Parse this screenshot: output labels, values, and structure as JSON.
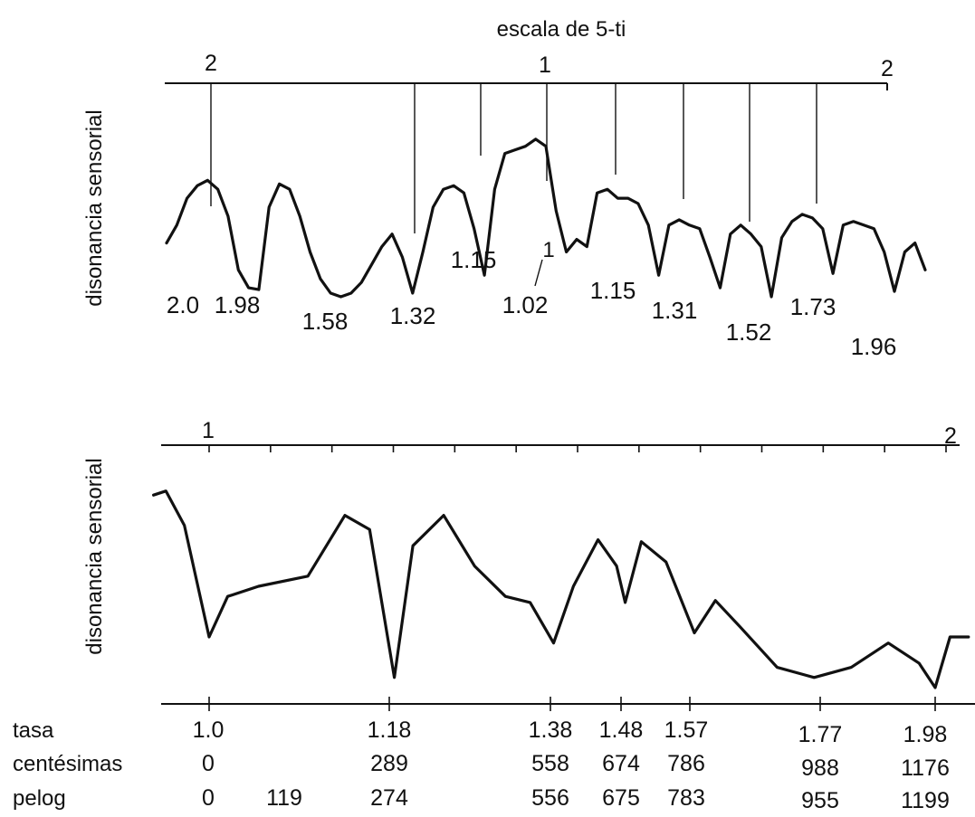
{
  "chart_data": [
    {
      "type": "line",
      "title": "escala de 5-ti",
      "ylabel": "disonancia sensorial",
      "top_axis_labels": [
        "2",
        "1",
        "2"
      ],
      "minima_labels": [
        {
          "text": "2.0"
        },
        {
          "text": "1.98"
        },
        {
          "text": "1.58"
        },
        {
          "text": "1.32"
        },
        {
          "text": "1.15"
        },
        {
          "text": "1"
        },
        {
          "text": "1.02"
        },
        {
          "text": "1.15"
        },
        {
          "text": "1.31"
        },
        {
          "text": "1.52"
        },
        {
          "text": "1.73"
        },
        {
          "text": "1.96"
        }
      ],
      "series": [
        {
          "values": [
            0.3,
            0.4,
            0.55,
            0.62,
            0.65,
            0.6,
            0.45,
            0.15,
            0.05,
            0.04,
            0.5,
            0.63,
            0.6,
            0.45,
            0.25,
            0.1,
            0.02,
            0.0,
            0.02,
            0.08,
            0.18,
            0.28,
            0.35,
            0.22,
            0.02,
            0.25,
            0.5,
            0.6,
            0.62,
            0.58,
            0.38,
            0.12,
            0.6,
            0.8,
            0.82,
            0.84,
            0.88,
            0.84,
            0.48,
            0.25,
            0.32,
            0.28,
            0.58,
            0.6,
            0.55,
            0.55,
            0.52,
            0.4,
            0.12,
            0.4,
            0.43,
            0.4,
            0.38,
            0.22,
            0.05,
            0.35,
            0.4,
            0.35,
            0.28,
            0.0,
            0.33,
            0.42,
            0.46,
            0.44,
            0.38,
            0.13,
            0.4,
            0.42,
            0.4,
            0.38,
            0.25,
            0.03,
            0.25,
            0.3,
            0.15
          ]
        }
      ]
    },
    {
      "type": "line",
      "ylabel": "disonancia sensorial",
      "top_axis_labels": [
        "1",
        "2"
      ],
      "row_labels": [
        "tasa",
        "centésimas",
        "pelog"
      ],
      "columns": [
        {
          "tasa": "1.0",
          "centesimas": "0",
          "pelog": "0"
        },
        {
          "tasa": "",
          "centesimas": "",
          "pelog": "119"
        },
        {
          "tasa": "1.18",
          "centesimas": "289",
          "pelog": "274"
        },
        {
          "tasa": "1.38",
          "centesimas": "558",
          "pelog": "556"
        },
        {
          "tasa": "1.48",
          "centesimas": "674",
          "pelog": "675"
        },
        {
          "tasa": "1.57",
          "centesimas": "786",
          "pelog": "783"
        },
        {
          "tasa": "1.77",
          "centesimas": "988",
          "pelog": "955"
        },
        {
          "tasa": "1.98",
          "centesimas": "1176",
          "pelog": "1199"
        }
      ],
      "series": [
        {
          "x_cents": [
            -90,
            -70,
            -40,
            0,
            30,
            80,
            160,
            220,
            260,
            300,
            330,
            380,
            430,
            480,
            520,
            558,
            590,
            630,
            660,
            674,
            700,
            740,
            786,
            820,
            860,
            920,
            980,
            1040,
            1100,
            1150,
            1176,
            1200,
            1230
          ],
          "values": [
            0.95,
            0.97,
            0.8,
            0.25,
            0.45,
            0.5,
            0.55,
            0.85,
            0.78,
            0.05,
            0.7,
            0.85,
            0.6,
            0.45,
            0.42,
            0.22,
            0.5,
            0.73,
            0.6,
            0.42,
            0.72,
            0.62,
            0.27,
            0.43,
            0.3,
            0.1,
            0.05,
            0.1,
            0.22,
            0.12,
            0.0,
            0.25,
            0.25
          ]
        }
      ]
    }
  ]
}
